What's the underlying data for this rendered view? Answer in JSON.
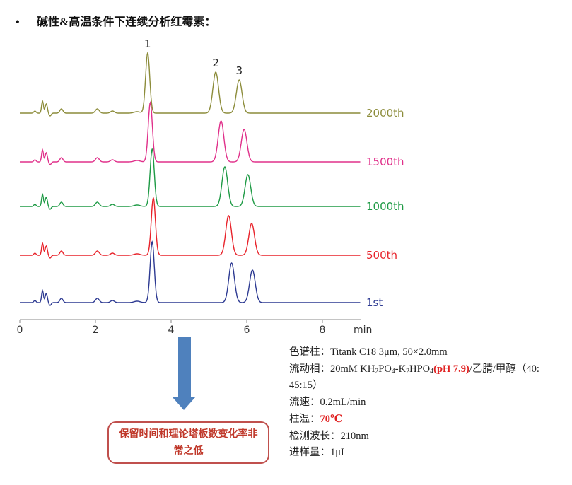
{
  "heading": {
    "bullet": "•",
    "text": "碱性&高温条件下连续分析红霉素："
  },
  "chart_data": {
    "type": "line",
    "xlabel": "min",
    "xlim": [
      0,
      9
    ],
    "xticks": [
      "0",
      "2",
      "4",
      "6",
      "8"
    ],
    "peak_labels": [
      "1",
      "2",
      "3"
    ],
    "grid": false,
    "series": [
      {
        "name": "2000th",
        "color": "#8c8c3a",
        "peaks": {
          "rt": [
            3.38,
            5.18,
            5.8
          ],
          "height": [
            85,
            58,
            47
          ]
        }
      },
      {
        "name": "1500th",
        "color": "#e0308a",
        "peaks": {
          "rt": [
            3.45,
            5.32,
            5.93
          ],
          "height": [
            84,
            58,
            46
          ]
        }
      },
      {
        "name": "1000th",
        "color": "#1e9a45",
        "peaks": {
          "rt": [
            3.5,
            5.42,
            6.03
          ],
          "height": [
            81,
            56,
            45
          ]
        }
      },
      {
        "name": "500th",
        "color": "#e8222a",
        "peaks": {
          "rt": [
            3.53,
            5.52,
            6.13
          ],
          "height": [
            81,
            56,
            45
          ]
        }
      },
      {
        "name": "1st",
        "color": "#2d3a92",
        "peaks": {
          "rt": [
            3.5,
            5.6,
            6.15
          ],
          "height": [
            86,
            56,
            46
          ]
        }
      }
    ]
  },
  "conditions": {
    "column_label": "色谱柱：",
    "column_value": "Titank C18 3μm, 50×2.0mm",
    "mobile_label": "流动相：",
    "mobile_a": "20mM KH",
    "mobile_sub1": "2",
    "mobile_b": "PO",
    "mobile_sub2": "4",
    "mobile_c": "-K",
    "mobile_sub3": "2",
    "mobile_d": "HPO",
    "mobile_sub4": "4",
    "mobile_ph": "(pH 7.9)",
    "mobile_e": "/乙腈/甲醇（40:",
    "mobile_ratio_cont": "45:15）",
    "flow_label": "流速：",
    "flow_value": "0.2mL/min",
    "temp_label": "柱温：",
    "temp_value": "70℃",
    "wavelength_label": "检测波长：",
    "wavelength_value": "210nm",
    "injection_label": "进样量：",
    "injection_value": "1μL"
  },
  "arrow_color": "#4f81bd",
  "note": {
    "text": "保留时间和理论塔板数变化率非常之低",
    "border_color": "#c0504d"
  }
}
